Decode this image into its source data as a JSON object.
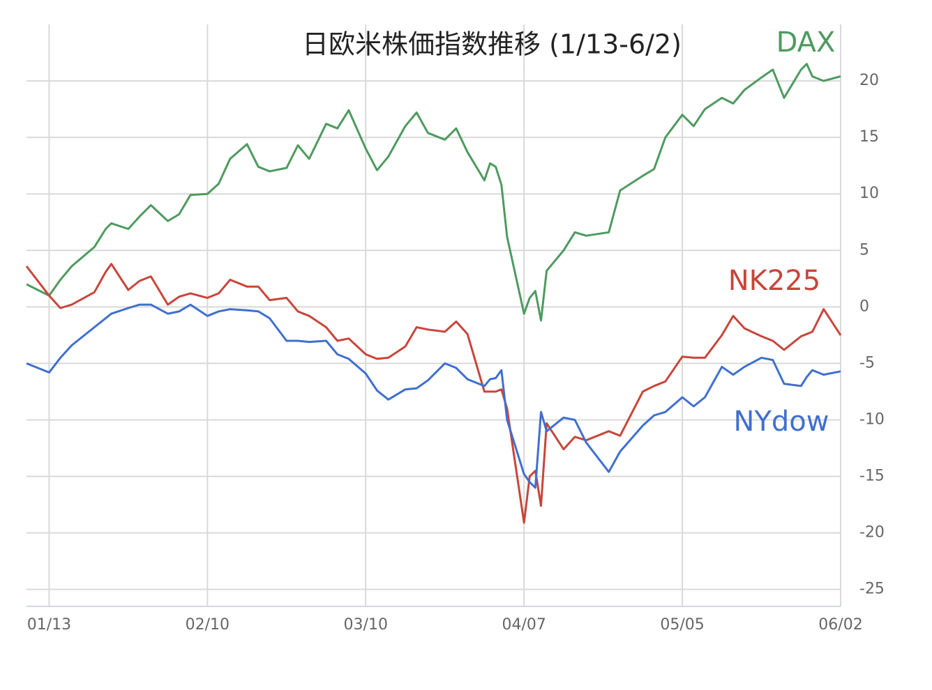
{
  "chart_data": {
    "type": "line",
    "title": "日欧米株価指数推移 (1/13-6/2)",
    "x": [
      "01/09",
      "01/13",
      "01/15",
      "01/17",
      "01/21",
      "01/23",
      "01/24",
      "01/27",
      "01/29",
      "01/31",
      "02/03",
      "02/05",
      "02/07",
      "02/10",
      "02/12",
      "02/14",
      "02/17",
      "02/19",
      "02/21",
      "02/24",
      "02/26",
      "02/28",
      "03/03",
      "03/05",
      "03/07",
      "03/10",
      "03/12",
      "03/14",
      "03/17",
      "03/19",
      "03/21",
      "03/24",
      "03/26",
      "03/28",
      "03/31",
      "04/01",
      "04/02",
      "04/03",
      "04/04",
      "04/07",
      "04/08",
      "04/09",
      "04/10",
      "04/11",
      "04/14",
      "04/16",
      "04/18",
      "04/22",
      "04/24",
      "04/28",
      "04/30",
      "05/02",
      "05/05",
      "05/07",
      "05/09",
      "05/12",
      "05/14",
      "05/16",
      "05/19",
      "05/21",
      "05/23",
      "05/26",
      "05/27",
      "05/28",
      "05/30",
      "06/02"
    ],
    "series": [
      {
        "name": "DAX",
        "color": "#4e9a5f",
        "values": [
          2.0,
          1.0,
          2.4,
          3.6,
          5.3,
          6.9,
          7.4,
          6.9,
          8.0,
          9.0,
          7.6,
          8.2,
          9.9,
          10.0,
          10.9,
          13.1,
          14.4,
          12.4,
          12.0,
          12.3,
          14.3,
          13.1,
          16.2,
          15.8,
          17.4,
          14.0,
          12.1,
          13.3,
          16.0,
          17.2,
          15.4,
          14.8,
          15.8,
          13.7,
          11.2,
          12.7,
          12.4,
          10.8,
          6.2,
          -0.6,
          0.8,
          1.4,
          -1.2,
          3.2,
          5.0,
          6.6,
          6.3,
          6.6,
          10.3,
          11.6,
          12.2,
          15.0,
          17.0,
          16.0,
          17.5,
          18.5,
          18.0,
          19.2,
          20.3,
          21.0,
          18.5,
          21.0,
          21.5,
          20.4,
          20.0,
          20.4
        ]
      },
      {
        "name": "NK225",
        "color": "#c8453a",
        "values": [
          3.6,
          1.0,
          -0.1,
          0.2,
          1.3,
          3.1,
          3.8,
          1.5,
          2.3,
          2.7,
          0.2,
          0.9,
          1.2,
          0.8,
          1.2,
          2.4,
          1.8,
          1.8,
          0.6,
          0.8,
          -0.4,
          -0.8,
          -1.8,
          -3.0,
          -2.8,
          -4.2,
          -4.6,
          -4.5,
          -3.5,
          -1.8,
          -2.0,
          -2.2,
          -1.3,
          -2.4,
          -7.5,
          -7.5,
          -7.5,
          -7.3,
          -9.0,
          -19.1,
          -15.0,
          -14.5,
          -17.6,
          -10.3,
          -12.6,
          -11.5,
          -11.8,
          -11.0,
          -11.4,
          -7.5,
          -7.0,
          -6.6,
          -4.4,
          -4.5,
          -4.5,
          -2.5,
          -0.8,
          -1.9,
          -2.6,
          -3.0,
          -3.8,
          -2.6,
          -2.4,
          -2.2,
          -0.2,
          -2.5
        ]
      },
      {
        "name": "NYdow",
        "color": "#3f6fcf",
        "values": [
          -5.0,
          -5.8,
          -4.5,
          -3.4,
          -1.8,
          -1.0,
          -0.6,
          -0.1,
          0.2,
          0.2,
          -0.6,
          -0.4,
          0.2,
          -0.8,
          -0.4,
          -0.2,
          -0.3,
          -0.4,
          -1.0,
          -3.0,
          -3.0,
          -3.1,
          -3.0,
          -4.2,
          -4.6,
          -5.9,
          -7.4,
          -8.2,
          -7.3,
          -7.2,
          -6.5,
          -5.0,
          -5.4,
          -6.4,
          -7.0,
          -6.4,
          -6.3,
          -5.6,
          -10.0,
          -14.8,
          -15.5,
          -16.0,
          -9.3,
          -11.0,
          -9.8,
          -10.0,
          -12.0,
          -14.6,
          -12.8,
          -10.5,
          -9.6,
          -9.3,
          -8.0,
          -8.8,
          -8.0,
          -5.3,
          -6.0,
          -5.3,
          -4.5,
          -4.7,
          -6.8,
          -7.0,
          -6.2,
          -5.6,
          -6.0,
          -5.7
        ]
      }
    ],
    "xlim": [
      "01/09",
      "06/02"
    ],
    "xticks": [
      "01/13",
      "02/10",
      "03/10",
      "04/07",
      "05/05",
      "06/02"
    ],
    "ylim": [
      -26.5,
      25
    ],
    "yticks": [
      20,
      15,
      10,
      5,
      0,
      -5,
      -10,
      -15,
      -20,
      -25
    ],
    "grid": true
  }
}
